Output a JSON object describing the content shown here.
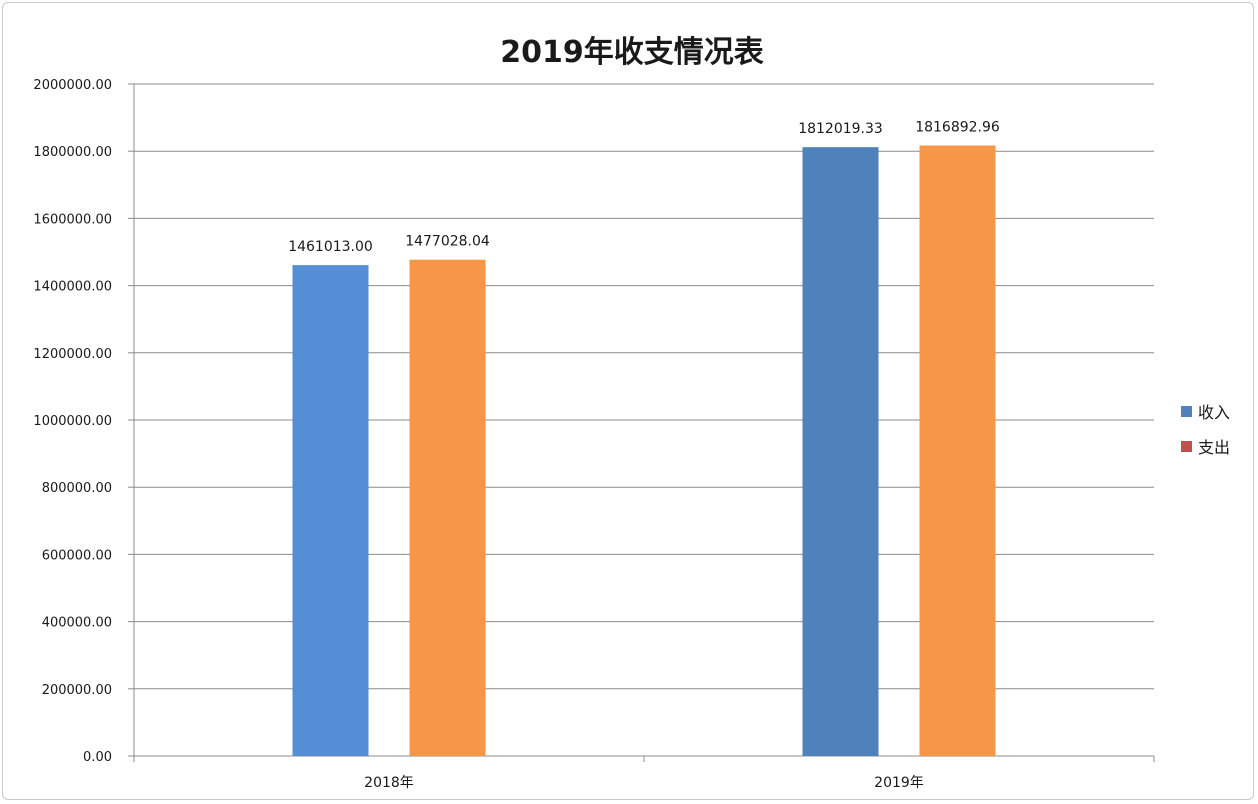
{
  "chart_data": {
    "type": "bar",
    "title": "2019年收支情况表",
    "categories": [
      "2018年",
      "2019年"
    ],
    "series": [
      {
        "name": "收入",
        "values": [
          1461013.0,
          1812019.33
        ],
        "labels": [
          "1461013.00",
          "1812019.33"
        ],
        "bar_colors": [
          "#558ed5",
          "#4f81bd"
        ],
        "legend_color": "#4f81bd"
      },
      {
        "name": "支出",
        "values": [
          1477028.04,
          1816892.96
        ],
        "labels": [
          "1477028.04",
          "1816892.96"
        ],
        "bar_colors": [
          "#f79646",
          "#f79646"
        ],
        "legend_color": "#c0504d"
      }
    ],
    "ylim": [
      0,
      2000000
    ],
    "yticks": [
      0,
      200000,
      400000,
      600000,
      800000,
      1000000,
      1200000,
      1400000,
      1600000,
      1800000,
      2000000
    ],
    "ytick_labels": [
      "0.00",
      "200000.00",
      "400000.00",
      "600000.00",
      "800000.00",
      "1000000.00",
      "1200000.00",
      "1400000.00",
      "1600000.00",
      "1800000.00",
      "2000000.00"
    ],
    "grid": true,
    "legend_position": "right"
  }
}
